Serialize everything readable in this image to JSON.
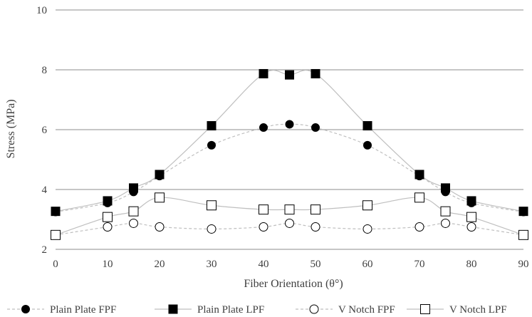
{
  "chart_data": {
    "type": "line",
    "title": "",
    "xlabel": "Fiber Orientation (θ°)",
    "ylabel": "Stress (MPa)",
    "xlim": [
      0,
      90
    ],
    "ylim": [
      2,
      10
    ],
    "x_ticks": [
      0,
      10,
      20,
      30,
      40,
      50,
      60,
      70,
      80,
      90
    ],
    "y_ticks": [
      2,
      4,
      6,
      8,
      10
    ],
    "grid": "horizontal major gridlines",
    "legend_position": "bottom",
    "x": [
      0,
      10,
      15,
      20,
      30,
      40,
      45,
      50,
      60,
      70,
      75,
      80,
      90
    ],
    "series": [
      {
        "name": "Plain Plate FPF",
        "marker": "filled-circle",
        "line": "dashed",
        "values": [
          3.25,
          3.55,
          3.92,
          4.45,
          5.48,
          6.07,
          6.18,
          6.07,
          5.48,
          4.45,
          3.92,
          3.55,
          3.25
        ]
      },
      {
        "name": "Plain Plate LPF",
        "marker": "filled-square",
        "line": "solid",
        "values": [
          3.27,
          3.62,
          4.05,
          4.5,
          6.13,
          7.87,
          7.83,
          7.87,
          6.13,
          4.5,
          4.05,
          3.62,
          3.27
        ]
      },
      {
        "name": "V Notch FPF",
        "marker": "open-circle",
        "line": "dashed",
        "values": [
          2.48,
          2.75,
          2.87,
          2.75,
          2.68,
          2.75,
          2.87,
          2.75,
          2.68,
          2.75,
          2.87,
          2.75,
          2.48
        ]
      },
      {
        "name": "V Notch LPF",
        "marker": "open-square",
        "line": "solid",
        "values": [
          2.48,
          3.08,
          3.27,
          3.73,
          3.47,
          3.33,
          3.33,
          3.33,
          3.47,
          3.73,
          3.27,
          3.08,
          2.48
        ]
      }
    ]
  },
  "colors": {
    "marker": "#000000",
    "line": "#bfbfbf",
    "grid": "#8c8c8c",
    "text": "#404040"
  }
}
